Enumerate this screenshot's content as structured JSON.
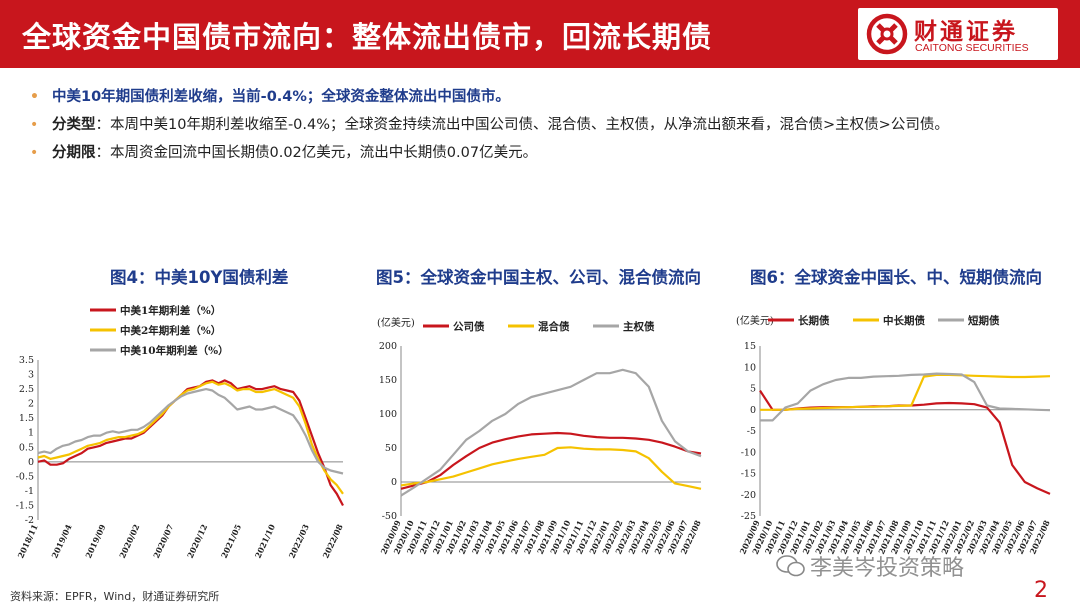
{
  "header": {
    "title": "全球资金中国债市流向：整体流出债市，回流长期债",
    "logo_cn": "财通证券",
    "logo_en": "CAITONG SECURITIES"
  },
  "bullets": [
    {
      "lead": "",
      "text": "中美10年期国债利差收缩，当前-0.4%；全球资金整体流出中国债市。"
    },
    {
      "lead": "分类型",
      "text": "：本周中美10年期利差收缩至-0.4%；全球资金持续流出中国公司债、混合债、主权债，从净流出额来看，混合债>主权债>公司债。"
    },
    {
      "lead": "分期限",
      "text": "：本周资金回流中国长期债0.02亿美元，流出中长期债0.07亿美元。"
    }
  ],
  "source": "资料来源：EPFR，Wind，财通证券研究所",
  "watermark": "李美岑投资策略",
  "page_number": "2",
  "colors": {
    "red": "#c8161d",
    "yellow": "#f5c200",
    "gray": "#a6a6a6",
    "title_blue": "#1f3c8c",
    "bullet_dot": "#e69d4a"
  },
  "chart_data": [
    {
      "type": "line",
      "title": "图4：中美10Y国债利差",
      "unit": "",
      "ylim": [
        -2,
        3.5
      ],
      "yticks": [
        "3.5",
        "3",
        "2.5",
        "2",
        "1.5",
        "1",
        "0.5",
        "0",
        "-0.5",
        "-1",
        "-1.5",
        "-2"
      ],
      "xticks": [
        "2018/11",
        "2019/04",
        "2019/09",
        "2020/02",
        "2020/07",
        "2020/12",
        "2021/05",
        "2021/10",
        "2022/03",
        "2022/08"
      ],
      "legend_placement": "top",
      "series": [
        {
          "name": "中美1年期利差（%）",
          "color": "#c8161d",
          "values": [
            0.0,
            0.05,
            -0.1,
            -0.1,
            -0.05,
            0.1,
            0.2,
            0.3,
            0.45,
            0.5,
            0.55,
            0.65,
            0.7,
            0.75,
            0.8,
            0.8,
            0.9,
            1.0,
            1.2,
            1.4,
            1.6,
            1.9,
            2.1,
            2.3,
            2.5,
            2.55,
            2.6,
            2.75,
            2.8,
            2.7,
            2.8,
            2.7,
            2.5,
            2.55,
            2.6,
            2.5,
            2.5,
            2.55,
            2.6,
            2.5,
            2.45,
            2.4,
            2.1,
            1.5,
            0.9,
            0.3,
            -0.2,
            -0.8,
            -1.1,
            -1.5
          ]
        },
        {
          "name": "中美2年期利差（%）",
          "color": "#f5c200",
          "values": [
            0.15,
            0.2,
            0.1,
            0.15,
            0.2,
            0.25,
            0.35,
            0.45,
            0.55,
            0.6,
            0.65,
            0.75,
            0.8,
            0.85,
            0.85,
            0.9,
            0.95,
            1.05,
            1.25,
            1.45,
            1.65,
            1.9,
            2.1,
            2.3,
            2.45,
            2.5,
            2.6,
            2.7,
            2.75,
            2.65,
            2.7,
            2.6,
            2.45,
            2.5,
            2.5,
            2.4,
            2.4,
            2.45,
            2.5,
            2.4,
            2.3,
            2.2,
            1.9,
            1.3,
            0.6,
            0.1,
            -0.3,
            -0.6,
            -0.8,
            -1.1
          ]
        },
        {
          "name": "中美10年期利差（%）",
          "color": "#a6a6a6",
          "values": [
            0.3,
            0.35,
            0.3,
            0.45,
            0.55,
            0.6,
            0.7,
            0.75,
            0.85,
            0.9,
            0.9,
            1.0,
            1.05,
            1.0,
            1.05,
            1.1,
            1.1,
            1.2,
            1.35,
            1.55,
            1.75,
            1.95,
            2.1,
            2.25,
            2.35,
            2.4,
            2.45,
            2.5,
            2.45,
            2.3,
            2.2,
            2.0,
            1.8,
            1.85,
            1.9,
            1.8,
            1.8,
            1.85,
            1.9,
            1.8,
            1.7,
            1.6,
            1.3,
            0.9,
            0.4,
            0.0,
            -0.2,
            -0.3,
            -0.35,
            -0.4
          ]
        }
      ]
    },
    {
      "type": "line",
      "title": "图5：全球资金中国主权、公司、混合债流向",
      "unit": "(亿美元)",
      "ylim": [
        -50,
        200
      ],
      "yticks": [
        "200",
        "150",
        "100",
        "50",
        "0",
        "-50"
      ],
      "xticks": [
        "2020/09",
        "2020/10",
        "2020/11",
        "2020/12",
        "2021/01",
        "2021/02",
        "2021/03",
        "2021/04",
        "2021/05",
        "2021/06",
        "2021/07",
        "2021/08",
        "2021/09",
        "2021/10",
        "2021/11",
        "2021/12",
        "2022/01",
        "2022/02",
        "2022/03",
        "2022/04",
        "2022/05",
        "2022/06",
        "2022/07",
        "2022/08"
      ],
      "legend_placement": "top",
      "series": [
        {
          "name": "公司债",
          "color": "#c8161d",
          "values": [
            -10,
            -5,
            0,
            10,
            25,
            38,
            50,
            58,
            63,
            67,
            70,
            71,
            72,
            71,
            68,
            66,
            65,
            65,
            64,
            62,
            58,
            52,
            45,
            42
          ]
        },
        {
          "name": "混合债",
          "color": "#f5c200",
          "values": [
            -5,
            -2,
            0,
            4,
            8,
            14,
            20,
            26,
            30,
            34,
            37,
            40,
            50,
            51,
            49,
            48,
            48,
            47,
            45,
            35,
            15,
            -2,
            -6,
            -10
          ]
        },
        {
          "name": "主权债",
          "color": "#a6a6a6",
          "values": [
            -20,
            -8,
            5,
            18,
            40,
            62,
            75,
            90,
            100,
            115,
            125,
            130,
            135,
            140,
            150,
            160,
            160,
            165,
            160,
            140,
            90,
            60,
            45,
            38
          ]
        }
      ]
    },
    {
      "type": "line",
      "title": "图6：全球资金中国长、中、短期债流向",
      "unit": "(亿美元)",
      "ylim": [
        -25,
        15
      ],
      "yticks": [
        "15",
        "10",
        "5",
        "0",
        "-5",
        "-10",
        "-15",
        "-20",
        "-25"
      ],
      "xticks": [
        "2020/09",
        "2020/10",
        "2020/11",
        "2020/12",
        "2021/01",
        "2021/02",
        "2021/03",
        "2021/04",
        "2021/05",
        "2021/06",
        "2021/07",
        "2021/08",
        "2021/09",
        "2021/10",
        "2021/11",
        "2021/12",
        "2022/01",
        "2022/02",
        "2022/03",
        "2022/04",
        "2022/05",
        "2022/06",
        "2022/07",
        "2022/08"
      ],
      "legend_placement": "top",
      "series": [
        {
          "name": "长期债",
          "color": "#c8161d",
          "values": [
            4.5,
            0,
            0,
            0.3,
            0.5,
            0.6,
            0.6,
            0.6,
            0.7,
            0.8,
            0.8,
            1.0,
            1.0,
            1.2,
            1.5,
            1.6,
            1.5,
            1.3,
            0.5,
            -3,
            -13,
            -17,
            -18.5,
            -19.8
          ]
        },
        {
          "name": "中长期债",
          "color": "#f5c200",
          "values": [
            0,
            0,
            0,
            0.2,
            0.3,
            0.4,
            0.5,
            0.6,
            0.7,
            0.7,
            0.8,
            0.9,
            1.0,
            7.8,
            8.2,
            8.2,
            8.1,
            8.0,
            7.9,
            7.8,
            7.7,
            7.7,
            7.8,
            7.9
          ]
        },
        {
          "name": "短期债",
          "color": "#a6a6a6",
          "values": [
            -2.5,
            -2.5,
            0.5,
            1.5,
            4.5,
            6.0,
            7.0,
            7.5,
            7.5,
            7.8,
            7.9,
            8.0,
            8.2,
            8.3,
            8.5,
            8.4,
            8.3,
            6.5,
            1.0,
            0.3,
            0.2,
            0.1,
            0.0,
            -0.1
          ]
        }
      ]
    }
  ]
}
